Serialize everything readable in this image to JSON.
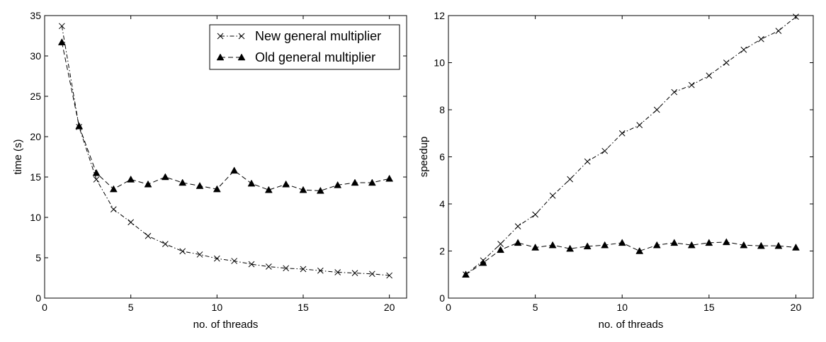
{
  "chart_data": [
    {
      "type": "line",
      "title": "",
      "xlabel": "no. of threads",
      "ylabel": "time (s)",
      "xlim": [
        0,
        21
      ],
      "ylim": [
        0,
        35
      ],
      "xticks": [
        "0",
        "5",
        "10",
        "15",
        "20"
      ],
      "yticks": [
        "0",
        "5",
        "10",
        "15",
        "20",
        "25",
        "30",
        "35"
      ],
      "grid": false,
      "legend_position": "top-right",
      "x": [
        1,
        2,
        3,
        4,
        5,
        6,
        7,
        8,
        9,
        10,
        11,
        12,
        13,
        14,
        15,
        16,
        17,
        18,
        19,
        20
      ],
      "series": [
        {
          "name": "New general multiplier",
          "marker": "x",
          "linestyle": "dash-dot",
          "values": [
            33.7,
            21.2,
            14.7,
            11.0,
            9.4,
            7.7,
            6.7,
            5.8,
            5.4,
            4.9,
            4.6,
            4.2,
            3.9,
            3.7,
            3.6,
            3.4,
            3.2,
            3.1,
            3.0,
            2.8
          ]
        },
        {
          "name": "Old general multiplier",
          "marker": "triangle",
          "linestyle": "dashed",
          "values": [
            31.7,
            21.3,
            15.5,
            13.5,
            14.7,
            14.1,
            15.0,
            14.3,
            13.9,
            13.5,
            15.8,
            14.2,
            13.4,
            14.1,
            13.4,
            13.3,
            14.0,
            14.3,
            14.3,
            14.8
          ]
        }
      ]
    },
    {
      "type": "line",
      "title": "",
      "xlabel": "no. of threads",
      "ylabel": "speedup",
      "xlim": [
        0,
        21
      ],
      "ylim": [
        0,
        12
      ],
      "xticks": [
        "0",
        "5",
        "10",
        "15",
        "20"
      ],
      "yticks": [
        "0",
        "2",
        "4",
        "6",
        "8",
        "10",
        "12"
      ],
      "grid": false,
      "x": [
        1,
        2,
        3,
        4,
        5,
        6,
        7,
        8,
        9,
        10,
        11,
        12,
        13,
        14,
        15,
        16,
        17,
        18,
        19,
        20
      ],
      "series": [
        {
          "marker": "x",
          "linestyle": "dash-dot",
          "values": [
            1.0,
            1.6,
            2.3,
            3.05,
            3.55,
            4.35,
            5.05,
            5.8,
            6.25,
            7.0,
            7.35,
            8.0,
            8.75,
            9.05,
            9.45,
            10.0,
            10.55,
            11.0,
            11.35,
            11.95
          ]
        },
        {
          "marker": "triangle",
          "linestyle": "dashed",
          "values": [
            1.0,
            1.5,
            2.05,
            2.35,
            2.15,
            2.25,
            2.1,
            2.2,
            2.25,
            2.35,
            2.0,
            2.25,
            2.35,
            2.25,
            2.35,
            2.38,
            2.25,
            2.22,
            2.22,
            2.15
          ]
        }
      ]
    }
  ]
}
